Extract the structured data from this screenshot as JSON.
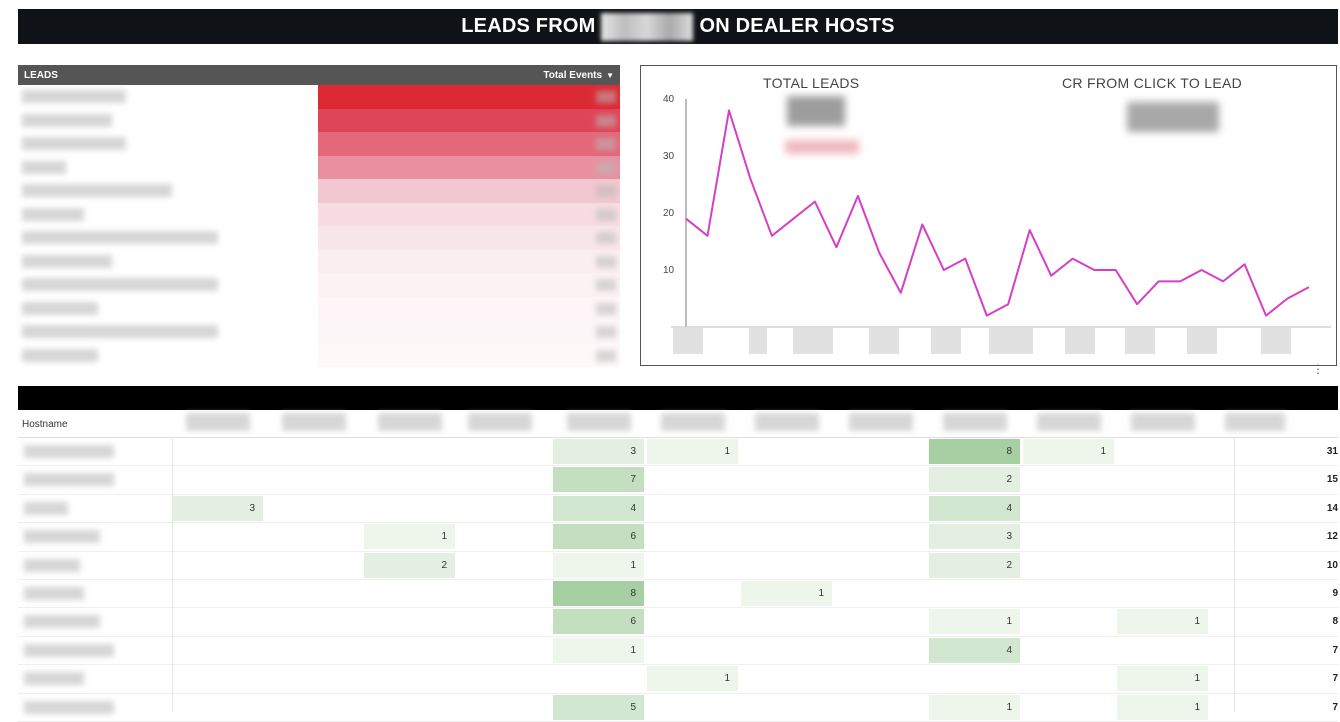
{
  "title": {
    "left": "LEADS FROM",
    "right": "ON DEALER HOSTS"
  },
  "leads_table": {
    "header_label": "LEADS",
    "metric_label": "Total Events",
    "rows": [
      {
        "bar_color": "#dc2a35",
        "bar_fraction": 1.0
      },
      {
        "bar_color": "#df4558",
        "bar_fraction": 1.0
      },
      {
        "bar_color": "#e2687a",
        "bar_fraction": 1.0
      },
      {
        "bar_color": "#e890a0",
        "bar_fraction": 1.0
      },
      {
        "bar_color": "#f2c8d0",
        "bar_fraction": 1.0
      },
      {
        "bar_color": "#f7dde2",
        "bar_fraction": 1.0
      },
      {
        "bar_color": "#f9e6ea",
        "bar_fraction": 1.0
      },
      {
        "bar_color": "#fbeef1",
        "bar_fraction": 1.0
      },
      {
        "bar_color": "#fcf2f4",
        "bar_fraction": 1.0
      },
      {
        "bar_color": "#fdf5f7",
        "bar_fraction": 1.0
      },
      {
        "bar_color": "#fdf6f8",
        "bar_fraction": 1.0
      },
      {
        "bar_color": "#fef8f9",
        "bar_fraction": 1.0
      }
    ]
  },
  "kpis": {
    "total_leads_label": "TOTAL LEADS",
    "cr_label": "CR FROM CLICK TO LEAD"
  },
  "chart_data": {
    "type": "line",
    "title": "",
    "xlabel": "",
    "ylabel": "",
    "ylim": [
      0,
      40
    ],
    "yticks": [
      "40",
      "30",
      "20",
      "10"
    ],
    "grid": false,
    "line_color": "#d63fc4",
    "series": [
      {
        "values": [
          19,
          16,
          38,
          26,
          16,
          19,
          22,
          14,
          23,
          13,
          6,
          18,
          10,
          12,
          2,
          4,
          17,
          9,
          12,
          10,
          10,
          4,
          8,
          8,
          10,
          8,
          11,
          2,
          5,
          7
        ]
      }
    ]
  },
  "pivot": {
    "row_header": "Hostname",
    "column_count": 12,
    "rows": [
      {
        "cells": [
          "",
          "",
          "",
          "",
          "3",
          "1",
          "",
          "",
          "8",
          "1",
          "",
          ""
        ],
        "total": "31"
      },
      {
        "cells": [
          "",
          "",
          "",
          "",
          "7",
          "",
          "",
          "",
          "2",
          "",
          "",
          ""
        ],
        "total": "15"
      },
      {
        "cells": [
          "3",
          "",
          "",
          "",
          "4",
          "",
          "",
          "",
          "4",
          "",
          "",
          ""
        ],
        "total": "14"
      },
      {
        "cells": [
          "",
          "",
          "1",
          "",
          "6",
          "",
          "",
          "",
          "3",
          "",
          "",
          ""
        ],
        "total": "12"
      },
      {
        "cells": [
          "",
          "",
          "2",
          "",
          "1",
          "",
          "",
          "",
          "2",
          "",
          "",
          ""
        ],
        "total": "10"
      },
      {
        "cells": [
          "",
          "",
          "",
          "",
          "8",
          "",
          "1",
          "",
          "",
          "",
          "",
          ""
        ],
        "total": "9"
      },
      {
        "cells": [
          "",
          "",
          "",
          "",
          "6",
          "",
          "",
          "",
          "1",
          "",
          "1",
          ""
        ],
        "total": "8"
      },
      {
        "cells": [
          "",
          "",
          "",
          "",
          "1",
          "",
          "",
          "",
          "4",
          "",
          "",
          ""
        ],
        "total": "7"
      },
      {
        "cells": [
          "",
          "",
          "",
          "",
          "",
          "1",
          "",
          "",
          "",
          "",
          "1",
          ""
        ],
        "total": "7"
      },
      {
        "cells": [
          "",
          "",
          "",
          "",
          "5",
          "",
          "",
          "",
          "1",
          "",
          "1",
          ""
        ],
        "total": "7"
      }
    ]
  }
}
